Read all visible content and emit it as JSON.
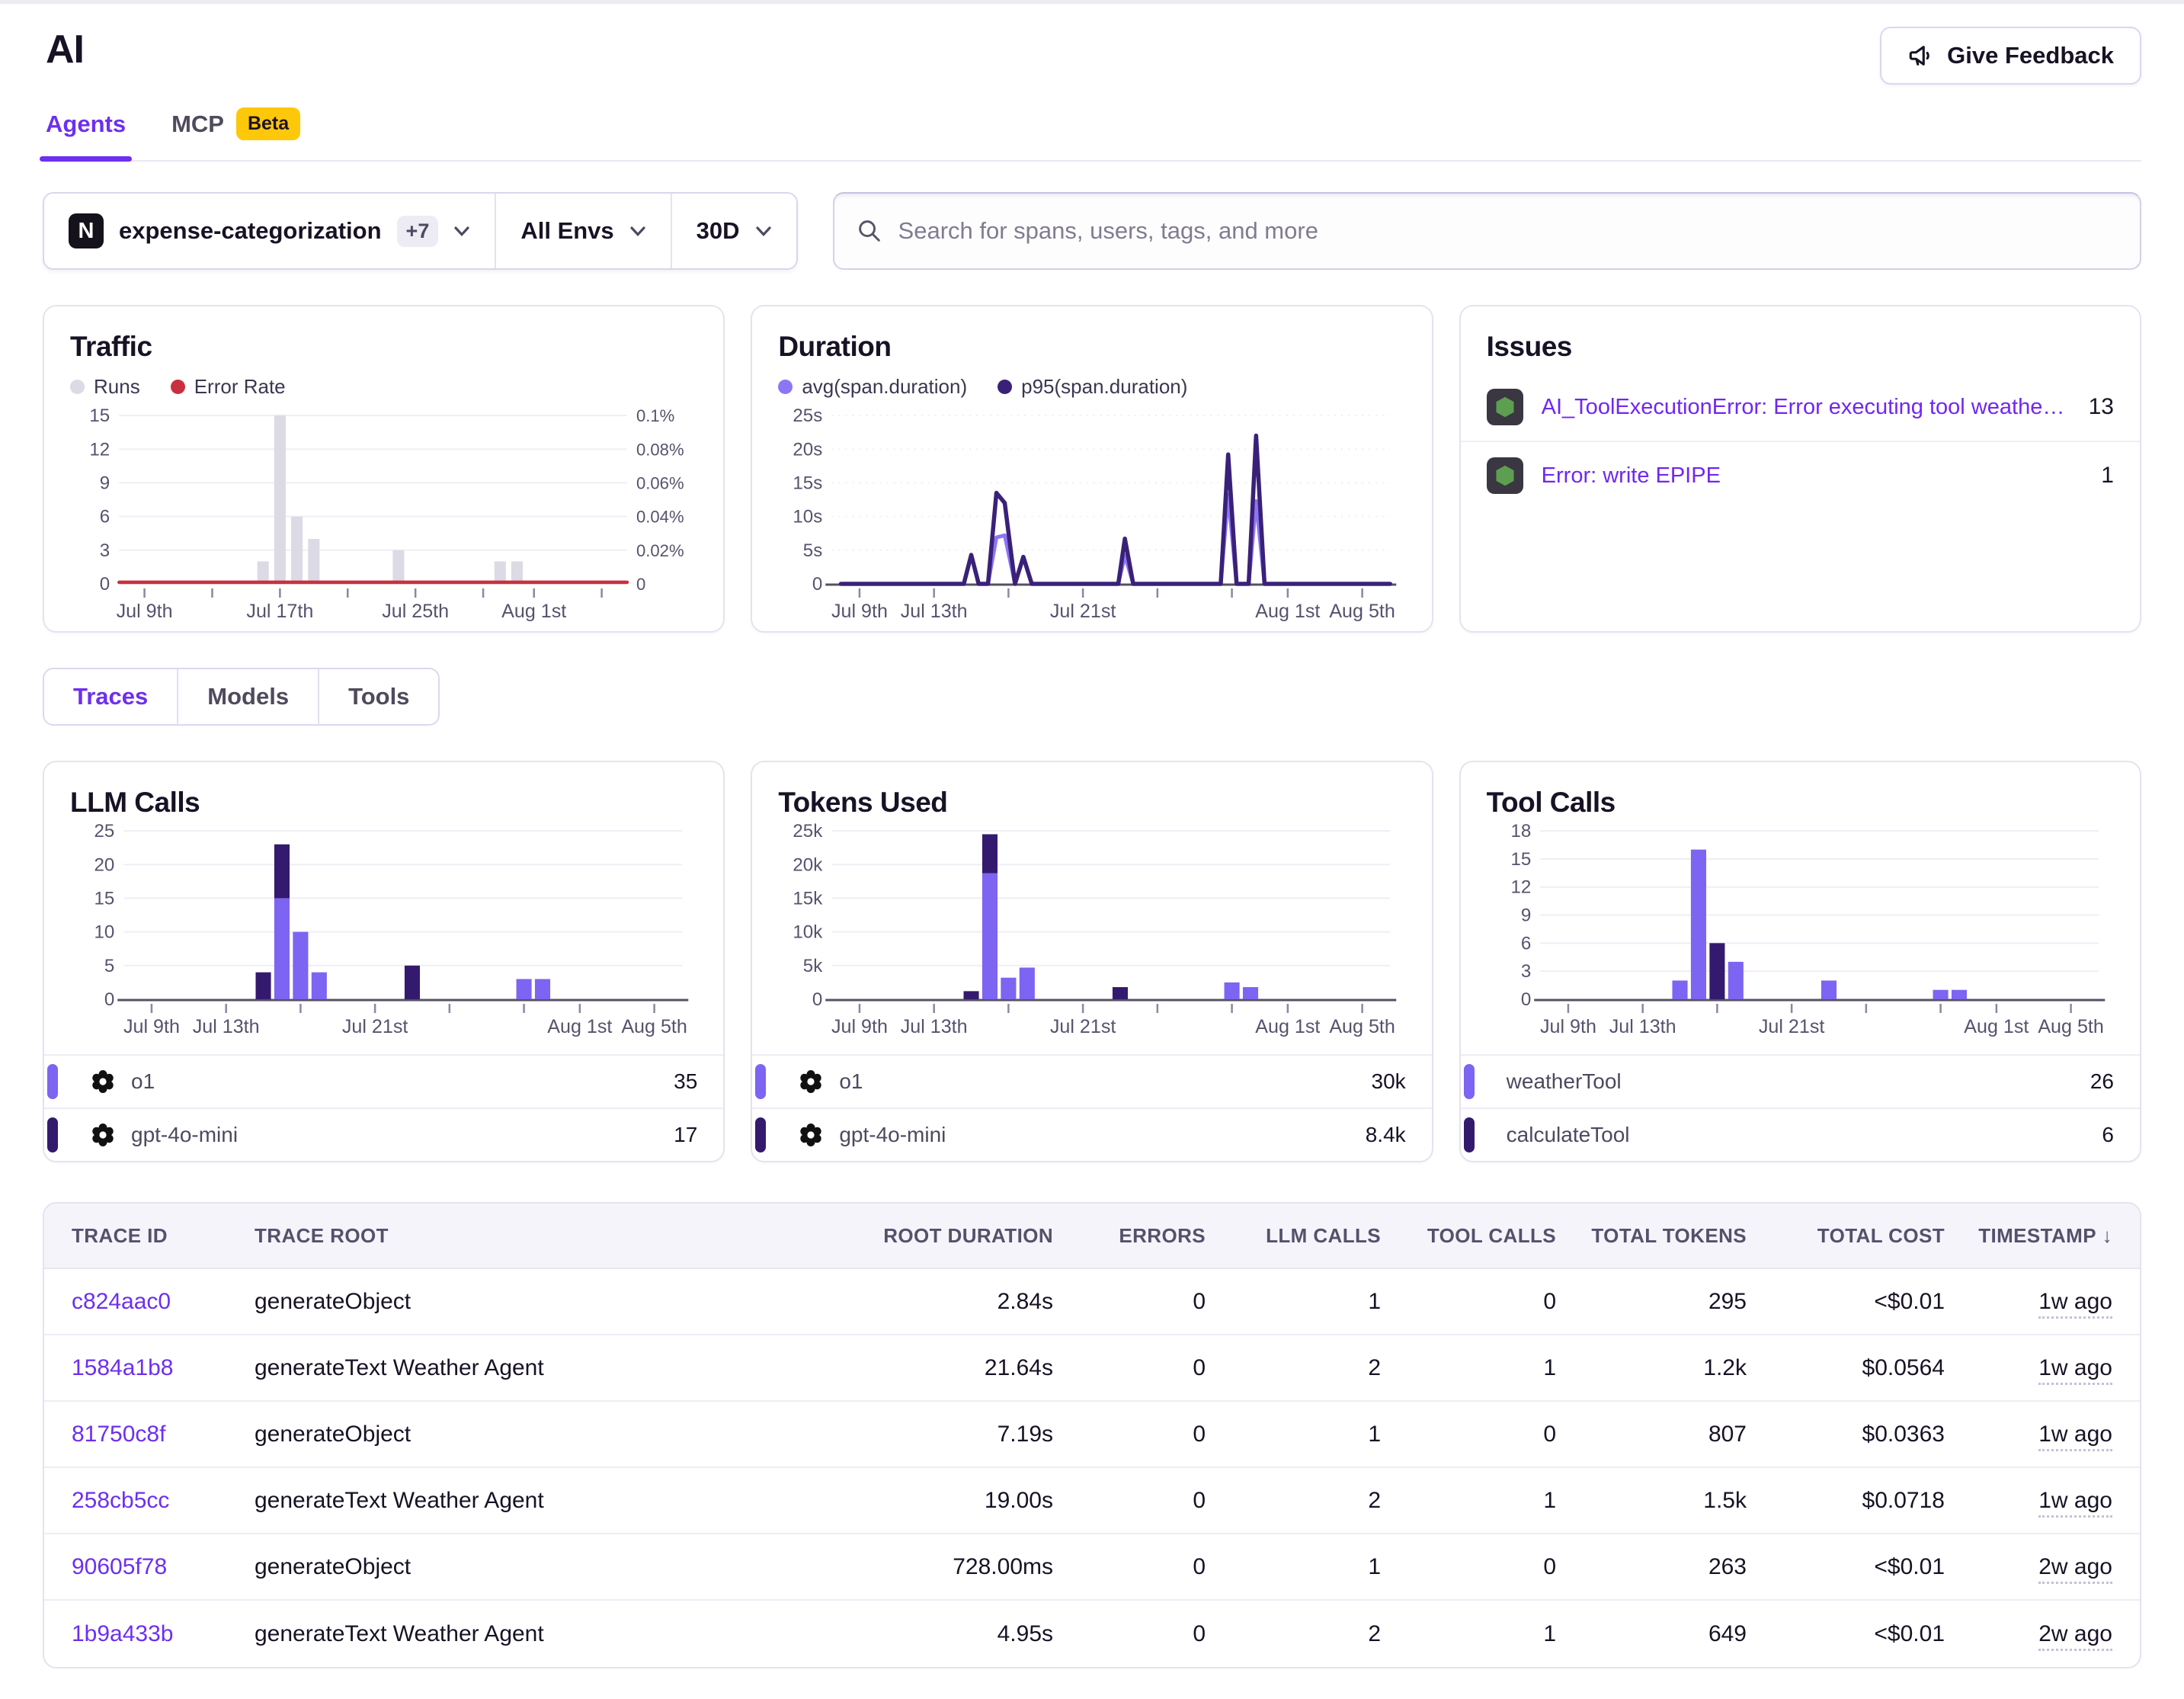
{
  "page": {
    "title": "AI"
  },
  "feedback_button": {
    "label": "Give Feedback"
  },
  "tabs": [
    {
      "label": "Agents",
      "active": true
    },
    {
      "label": "MCP",
      "badge": "Beta"
    }
  ],
  "filters": {
    "project": {
      "icon_letter": "N",
      "name": "expense-categorization",
      "extra": "+7"
    },
    "env": "All Envs",
    "range": "30D"
  },
  "search": {
    "placeholder": "Search for spans, users, tags, and more"
  },
  "issues": {
    "title": "Issues",
    "items": [
      {
        "label": "AI_ToolExecutionError: Error executing tool weatherTool: Locatio…",
        "count": "13"
      },
      {
        "label": "Error: write EPIPE",
        "count": "1"
      }
    ]
  },
  "section_tabs": [
    {
      "label": "Traces",
      "active": true
    },
    {
      "label": "Models"
    },
    {
      "label": "Tools"
    }
  ],
  "colors": {
    "accent_purple": "#6d2ff0",
    "series_light": "#7d64f2",
    "series_dark": "#341a6e",
    "avg_line": "#8d76f4",
    "p95_line": "#3a2178",
    "runs_gray": "#dcdae4",
    "error_red": "#c9303f",
    "node_green": "#5d9e50",
    "beta_yellow": "#fdc80a"
  },
  "chart_data": [
    {
      "id": "traffic",
      "type": "bar+line",
      "title": "Traffic",
      "legend": [
        {
          "label": "Runs",
          "color": "#dcdae4"
        },
        {
          "label": "Error Rate",
          "color": "#c9303f"
        }
      ],
      "x_domain": {
        "start": "Jul 8",
        "days": 30
      },
      "y_left": {
        "ticks": [
          "0",
          "3",
          "6",
          "9",
          "12",
          "15"
        ],
        "max": 15
      },
      "y_right": {
        "ticks": [
          "0",
          "0.02%",
          "0.04%",
          "0.06%",
          "0.08%",
          "0.1%"
        ]
      },
      "bars": [
        {
          "date": "Jul 16",
          "day": 8,
          "value": 2
        },
        {
          "date": "Jul 17",
          "day": 9,
          "value": 15
        },
        {
          "date": "Jul 18",
          "day": 10,
          "value": 6
        },
        {
          "date": "Jul 19",
          "day": 11,
          "value": 4
        },
        {
          "date": "Jul 24",
          "day": 16,
          "value": 3
        },
        {
          "date": "Jul 30",
          "day": 22,
          "value": 2
        },
        {
          "date": "Jul 31",
          "day": 23,
          "value": 2
        }
      ],
      "error_rate_line": {
        "constant_value": 0
      },
      "x_ticks": [
        {
          "day": 1,
          "label": "Jul 9th"
        },
        {
          "day": 5
        },
        {
          "day": 9,
          "label": "Jul 17th"
        },
        {
          "day": 13
        },
        {
          "day": 17,
          "label": "Jul 25th"
        },
        {
          "day": 21
        },
        {
          "day": 24,
          "label": "Aug 1st"
        },
        {
          "day": 28
        }
      ]
    },
    {
      "id": "duration",
      "type": "line",
      "title": "Duration",
      "legend": [
        {
          "label": "avg(span.duration)",
          "color": "#8d76f4"
        },
        {
          "label": "p95(span.duration)",
          "color": "#3a2178"
        }
      ],
      "x_domain": {
        "start": "Jul 8",
        "days": 30
      },
      "y": {
        "ticks": [
          "0",
          "5s",
          "10s",
          "15s",
          "20s",
          "25s"
        ],
        "max": 25
      },
      "series": [
        {
          "name": "avg(span.duration)",
          "color": "#8d76f4",
          "width": 5,
          "points": [
            [
              0,
              0
            ],
            [
              6.6,
              0
            ],
            [
              7,
              4.3
            ],
            [
              7.4,
              0
            ],
            [
              7.9,
              0
            ],
            [
              8.35,
              6.9
            ],
            [
              8.8,
              7.2
            ],
            [
              9.35,
              0
            ],
            [
              9.8,
              4
            ],
            [
              10.25,
              0
            ],
            [
              14.9,
              0
            ],
            [
              15.25,
              4.2
            ],
            [
              15.7,
              0
            ],
            [
              20.4,
              0
            ],
            [
              20.8,
              13.2
            ],
            [
              21.25,
              0
            ],
            [
              21.9,
              0
            ],
            [
              22.3,
              12.3
            ],
            [
              22.75,
              0
            ],
            [
              29.5,
              0
            ]
          ]
        },
        {
          "name": "p95(span.duration)",
          "color": "#3a2178",
          "width": 5.5,
          "points": [
            [
              0,
              0
            ],
            [
              6.6,
              0
            ],
            [
              7,
              4.3
            ],
            [
              7.4,
              0
            ],
            [
              7.9,
              0
            ],
            [
              8.35,
              13.5
            ],
            [
              8.8,
              12
            ],
            [
              9.35,
              0
            ],
            [
              9.8,
              4
            ],
            [
              10.25,
              0
            ],
            [
              14.9,
              0
            ],
            [
              15.25,
              6.7
            ],
            [
              15.7,
              0
            ],
            [
              20.4,
              0
            ],
            [
              20.8,
              19.2
            ],
            [
              21.25,
              0
            ],
            [
              21.9,
              0
            ],
            [
              22.3,
              22
            ],
            [
              22.75,
              0
            ],
            [
              29.5,
              0
            ]
          ]
        }
      ],
      "x_ticks": [
        {
          "day": 1,
          "label": "Jul 9th"
        },
        {
          "day": 5,
          "label": "Jul 13th"
        },
        {
          "day": 9
        },
        {
          "day": 13,
          "label": "Jul 21st"
        },
        {
          "day": 17
        },
        {
          "day": 21
        },
        {
          "day": 24,
          "label": "Aug 1st"
        },
        {
          "day": 28,
          "label": "Aug 5th"
        }
      ]
    },
    {
      "id": "llm_calls",
      "type": "stacked_bar",
      "title": "LLM Calls",
      "x_domain": {
        "start": "Jul 8",
        "days": 30
      },
      "y": {
        "ticks": [
          "0",
          "5",
          "10",
          "15",
          "20",
          "25"
        ],
        "max": 25
      },
      "series": [
        {
          "name": "o1",
          "color": "#7d64f2"
        },
        {
          "name": "gpt-4o-mini",
          "color": "#341a6e"
        }
      ],
      "bars": [
        {
          "date": "Jul 15",
          "day": 7,
          "values": [
            0,
            4
          ]
        },
        {
          "date": "Jul 16",
          "day": 8,
          "values": [
            15,
            8
          ]
        },
        {
          "date": "Jul 17",
          "day": 9,
          "values": [
            10,
            0
          ]
        },
        {
          "date": "Jul 18",
          "day": 10,
          "values": [
            4,
            0
          ]
        },
        {
          "date": "Jul 23",
          "day": 15,
          "values": [
            0,
            5
          ]
        },
        {
          "date": "Jul 29",
          "day": 21,
          "values": [
            3,
            0
          ]
        },
        {
          "date": "Jul 30",
          "day": 22,
          "values": [
            3,
            0
          ]
        }
      ],
      "x_ticks": [
        {
          "day": 1,
          "label": "Jul 9th"
        },
        {
          "day": 5,
          "label": "Jul 13th"
        },
        {
          "day": 9
        },
        {
          "day": 13,
          "label": "Jul 21st"
        },
        {
          "day": 17
        },
        {
          "day": 21
        },
        {
          "day": 24,
          "label": "Aug 1st"
        },
        {
          "day": 28,
          "label": "Aug 5th"
        }
      ],
      "legend_rows": [
        {
          "color": "#7d64f2",
          "icon": "openai",
          "label": "o1",
          "value": "35"
        },
        {
          "color": "#341a6e",
          "icon": "openai",
          "label": "gpt-4o-mini",
          "value": "17"
        }
      ]
    },
    {
      "id": "tokens_used",
      "type": "stacked_bar",
      "title": "Tokens Used",
      "x_domain": {
        "start": "Jul 8",
        "days": 30
      },
      "y": {
        "ticks": [
          "0",
          "5k",
          "10k",
          "15k",
          "20k",
          "25k"
        ],
        "max": 25000
      },
      "series": [
        {
          "name": "o1",
          "color": "#7d64f2"
        },
        {
          "name": "gpt-4o-mini",
          "color": "#341a6e"
        }
      ],
      "bars": [
        {
          "date": "Jul 15",
          "day": 7,
          "values": [
            0,
            1200
          ]
        },
        {
          "date": "Jul 16",
          "day": 8,
          "values": [
            18700,
            5800
          ]
        },
        {
          "date": "Jul 17",
          "day": 9,
          "values": [
            3200,
            0
          ]
        },
        {
          "date": "Jul 18",
          "day": 10,
          "values": [
            4700,
            0
          ]
        },
        {
          "date": "Jul 23",
          "day": 15,
          "values": [
            0,
            1800
          ]
        },
        {
          "date": "Jul 29",
          "day": 21,
          "values": [
            2500,
            0
          ]
        },
        {
          "date": "Jul 30",
          "day": 22,
          "values": [
            1800,
            0
          ]
        }
      ],
      "x_ticks": [
        {
          "day": 1,
          "label": "Jul 9th"
        },
        {
          "day": 5,
          "label": "Jul 13th"
        },
        {
          "day": 9
        },
        {
          "day": 13,
          "label": "Jul 21st"
        },
        {
          "day": 17
        },
        {
          "day": 21
        },
        {
          "day": 24,
          "label": "Aug 1st"
        },
        {
          "day": 28,
          "label": "Aug 5th"
        }
      ],
      "legend_rows": [
        {
          "color": "#7d64f2",
          "icon": "openai",
          "label": "o1",
          "value": "30k"
        },
        {
          "color": "#341a6e",
          "icon": "openai",
          "label": "gpt-4o-mini",
          "value": "8.4k"
        }
      ]
    },
    {
      "id": "tool_calls",
      "type": "stacked_bar",
      "title": "Tool Calls",
      "x_domain": {
        "start": "Jul 8",
        "days": 30
      },
      "y": {
        "ticks": [
          "0",
          "3",
          "6",
          "9",
          "12",
          "15",
          "18"
        ],
        "max": 18
      },
      "series": [
        {
          "name": "weatherTool",
          "color": "#7d64f2"
        },
        {
          "name": "calculateTool",
          "color": "#341a6e"
        }
      ],
      "bars": [
        {
          "date": "Jul 15",
          "day": 7,
          "values": [
            2,
            0
          ]
        },
        {
          "date": "Jul 16",
          "day": 8,
          "values": [
            16,
            0
          ]
        },
        {
          "date": "Jul 17",
          "day": 9,
          "values": [
            0,
            6
          ]
        },
        {
          "date": "Jul 18",
          "day": 10,
          "values": [
            4,
            0
          ]
        },
        {
          "date": "Jul 23",
          "day": 15,
          "values": [
            2,
            0
          ]
        },
        {
          "date": "Jul 29",
          "day": 21,
          "values": [
            1,
            0
          ]
        },
        {
          "date": "Jul 30",
          "day": 22,
          "values": [
            1,
            0
          ]
        }
      ],
      "x_ticks": [
        {
          "day": 1,
          "label": "Jul 9th"
        },
        {
          "day": 5,
          "label": "Jul 13th"
        },
        {
          "day": 9
        },
        {
          "day": 13,
          "label": "Jul 21st"
        },
        {
          "day": 17
        },
        {
          "day": 21
        },
        {
          "day": 24,
          "label": "Aug 1st"
        },
        {
          "day": 28,
          "label": "Aug 5th"
        }
      ],
      "legend_rows": [
        {
          "color": "#7d64f2",
          "icon": null,
          "label": "weatherTool",
          "value": "26"
        },
        {
          "color": "#341a6e",
          "icon": null,
          "label": "calculateTool",
          "value": "6"
        }
      ]
    }
  ],
  "table": {
    "columns": [
      "TRACE ID",
      "TRACE ROOT",
      "ROOT DURATION",
      "ERRORS",
      "LLM CALLS",
      "TOOL CALLS",
      "TOTAL TOKENS",
      "TOTAL COST",
      "TIMESTAMP"
    ],
    "sort": {
      "column": "TIMESTAMP",
      "direction": "desc",
      "arrow": "↓"
    },
    "rows": [
      [
        "c824aac0",
        "generateObject",
        "2.84s",
        "0",
        "1",
        "0",
        "295",
        "<$0.01",
        "1w ago"
      ],
      [
        "1584a1b8",
        "generateText Weather Agent",
        "21.64s",
        "0",
        "2",
        "1",
        "1.2k",
        "$0.0564",
        "1w ago"
      ],
      [
        "81750c8f",
        "generateObject",
        "7.19s",
        "0",
        "1",
        "0",
        "807",
        "$0.0363",
        "1w ago"
      ],
      [
        "258cb5cc",
        "generateText Weather Agent",
        "19.00s",
        "0",
        "2",
        "1",
        "1.5k",
        "$0.0718",
        "1w ago"
      ],
      [
        "90605f78",
        "generateObject",
        "728.00ms",
        "0",
        "1",
        "0",
        "263",
        "<$0.01",
        "2w ago"
      ],
      [
        "1b9a433b",
        "generateText Weather Agent",
        "4.95s",
        "0",
        "2",
        "1",
        "649",
        "<$0.01",
        "2w ago"
      ]
    ]
  }
}
